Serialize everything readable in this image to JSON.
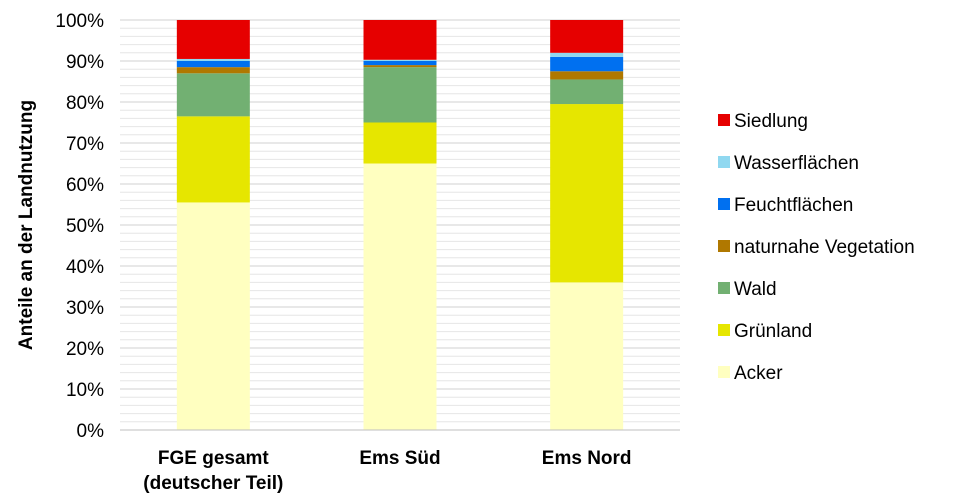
{
  "chart_data": {
    "type": "bar",
    "stacked": true,
    "percent": true,
    "title": "",
    "xlabel": "",
    "ylabel": "Anteile an der Landnutzung",
    "ylim": [
      0,
      100
    ],
    "yticks": [
      "0%",
      "10%",
      "20%",
      "30%",
      "40%",
      "50%",
      "60%",
      "70%",
      "80%",
      "90%",
      "100%"
    ],
    "categories": [
      [
        "FGE gesamt",
        "(deutscher Teil)"
      ],
      [
        "Ems Süd"
      ],
      [
        "Ems Nord"
      ]
    ],
    "grid": true,
    "legend_position": "right",
    "series": [
      {
        "name": "Acker",
        "color": "#FFFFC0",
        "values": [
          55.5,
          65,
          36
        ]
      },
      {
        "name": "Grünland",
        "color": "#E6E600",
        "values": [
          21,
          10,
          43.5
        ]
      },
      {
        "name": "Wald",
        "color": "#72B072",
        "values": [
          10.5,
          13.5,
          6
        ]
      },
      {
        "name": "naturnahe Vegetation",
        "color": "#B07800",
        "values": [
          1.5,
          0.5,
          2
        ]
      },
      {
        "name": "Feuchtflächen",
        "color": "#0070F0",
        "values": [
          1.5,
          1,
          3.5
        ]
      },
      {
        "name": "Wasserflächen",
        "color": "#90D8F0",
        "values": [
          0.5,
          0.3,
          1
        ]
      },
      {
        "name": "Siedlung",
        "color": "#E60000",
        "values": [
          9.5,
          9.7,
          8
        ]
      }
    ]
  }
}
